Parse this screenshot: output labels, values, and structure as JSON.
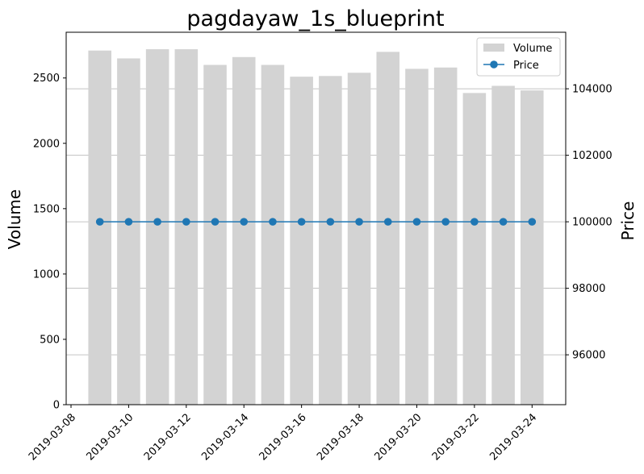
{
  "chart_data": {
    "type": "bar+line",
    "title": "pagdayaw_1s_blueprint",
    "x": [
      "2019-03-09",
      "2019-03-10",
      "2019-03-11",
      "2019-03-12",
      "2019-03-13",
      "2019-03-14",
      "2019-03-15",
      "2019-03-16",
      "2019-03-17",
      "2019-03-18",
      "2019-03-19",
      "2019-03-20",
      "2019-03-21",
      "2019-03-22",
      "2019-03-23",
      "2019-03-24"
    ],
    "x_tick_labels": [
      "2019-03-08",
      "2019-03-10",
      "2019-03-12",
      "2019-03-14",
      "2019-03-16",
      "2019-03-18",
      "2019-03-20",
      "2019-03-22",
      "2019-03-24"
    ],
    "xlim": [
      "2019-03-08",
      "2019-03-25"
    ],
    "series": [
      {
        "name": "Volume",
        "type": "bar",
        "axis": "left",
        "color": "#d3d3d3",
        "values": [
          2710,
          2650,
          2720,
          2720,
          2600,
          2660,
          2600,
          2510,
          2515,
          2540,
          2700,
          2570,
          2580,
          2385,
          2440,
          2405
        ]
      },
      {
        "name": "Price",
        "type": "line",
        "axis": "right",
        "color": "#1f77b4",
        "marker": "circle",
        "values": [
          100000,
          100000,
          100000,
          100000,
          100000,
          100000,
          100000,
          100000,
          100000,
          100000,
          100000,
          100000,
          100000,
          100000,
          100000,
          100000
        ]
      }
    ],
    "ylabel": "Volume",
    "ylim": [
      0,
      2850
    ],
    "y_ticks": [
      "0",
      "500",
      "1000",
      "1500",
      "2000",
      "2500"
    ],
    "y2label": "Price",
    "y2lim": [
      94500,
      105700
    ],
    "y2_ticks": [
      "96000",
      "98000",
      "100000",
      "102000",
      "104000"
    ],
    "grid": "horizontal lines at right-axis ticks",
    "legend_position": "top-right"
  }
}
